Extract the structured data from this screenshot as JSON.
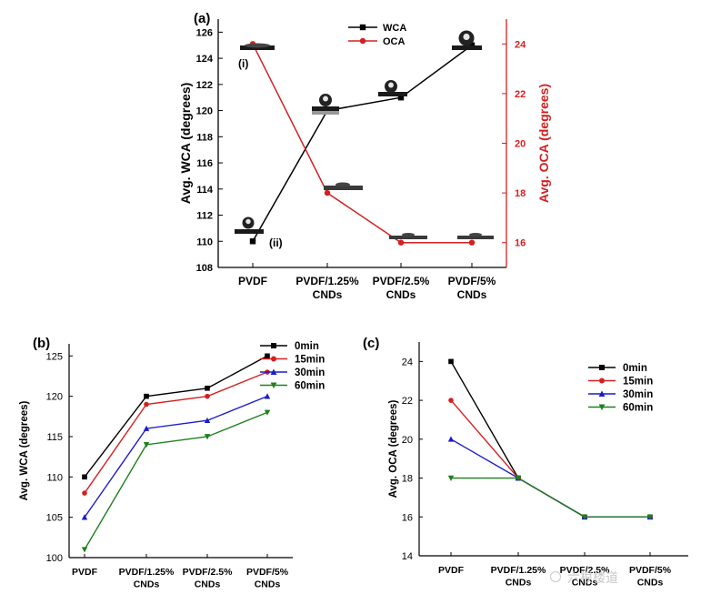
{
  "chart_data": [
    {
      "panel": "(a)",
      "type": "line",
      "categories": [
        "PVDF",
        "PVDF/1.25%\nCNDs",
        "PVDF/2.5%\nCNDs",
        "PVDF/5%\nCNDs"
      ],
      "y_left": {
        "label": "Avg. WCA (degrees)",
        "lim": [
          108,
          127
        ],
        "ticks": [
          108,
          110,
          112,
          114,
          116,
          118,
          120,
          122,
          124,
          126
        ],
        "color": "#000000"
      },
      "y_right": {
        "label": "Avg. OCA (degrees)",
        "lim": [
          15,
          25
        ],
        "ticks": [
          16,
          18,
          20,
          22,
          24
        ],
        "color": "#d42020"
      },
      "series": [
        {
          "name": "WCA",
          "axis": "left",
          "color": "#000000",
          "marker": "square",
          "values": [
            110,
            120,
            121,
            125
          ]
        },
        {
          "name": "OCA",
          "axis": "right",
          "color": "#d42020",
          "marker": "circle",
          "values": [
            24,
            18,
            16,
            16
          ]
        }
      ],
      "annotations": [
        "(i)",
        "(ii)"
      ],
      "legend": "top-center"
    },
    {
      "panel": "(b)",
      "type": "line",
      "categories": [
        "PVDF",
        "PVDF/1.25%\nCNDs",
        "PVDF/2.5%\nCNDs",
        "PVDF/5%\nCNDs"
      ],
      "ylabel": "Avg. WCA (degrees)",
      "ylim": [
        100,
        126.5
      ],
      "yticks": [
        100,
        105,
        110,
        115,
        120,
        125
      ],
      "series": [
        {
          "name": "0min",
          "color": "#000000",
          "marker": "square",
          "values": [
            110,
            120,
            121,
            125
          ]
        },
        {
          "name": "15min",
          "color": "#d42020",
          "marker": "circle",
          "values": [
            108,
            119,
            120,
            123
          ]
        },
        {
          "name": "30min",
          "color": "#1c1cc8",
          "marker": "triangle-up",
          "values": [
            105,
            116,
            117,
            120
          ]
        },
        {
          "name": "60min",
          "color": "#1e7f1e",
          "marker": "triangle-down",
          "values": [
            101,
            114,
            115,
            118
          ]
        }
      ],
      "legend": "top-right"
    },
    {
      "panel": "(c)",
      "type": "line",
      "categories": [
        "PVDF",
        "PVDF/1.25%\nCNDs",
        "PVDF/2.5%\nCNDs",
        "PVDF/5%\nCNDs"
      ],
      "ylabel": "Avg. OCA (degrees)",
      "ylim": [
        14,
        25
      ],
      "yticks": [
        14,
        16,
        18,
        20,
        22,
        24
      ],
      "series": [
        {
          "name": "0min",
          "color": "#000000",
          "marker": "square",
          "values": [
            24,
            18,
            16,
            16
          ]
        },
        {
          "name": "15min",
          "color": "#d42020",
          "marker": "circle",
          "values": [
            22,
            18,
            16,
            16
          ]
        },
        {
          "name": "30min",
          "color": "#1c1cc8",
          "marker": "triangle-up",
          "values": [
            20,
            18,
            16,
            16
          ]
        },
        {
          "name": "60min",
          "color": "#1e7f1e",
          "marker": "triangle-down",
          "values": [
            18,
            18,
            16,
            16
          ]
        }
      ],
      "legend": "top-right"
    }
  ],
  "watermark": "六根楼道"
}
